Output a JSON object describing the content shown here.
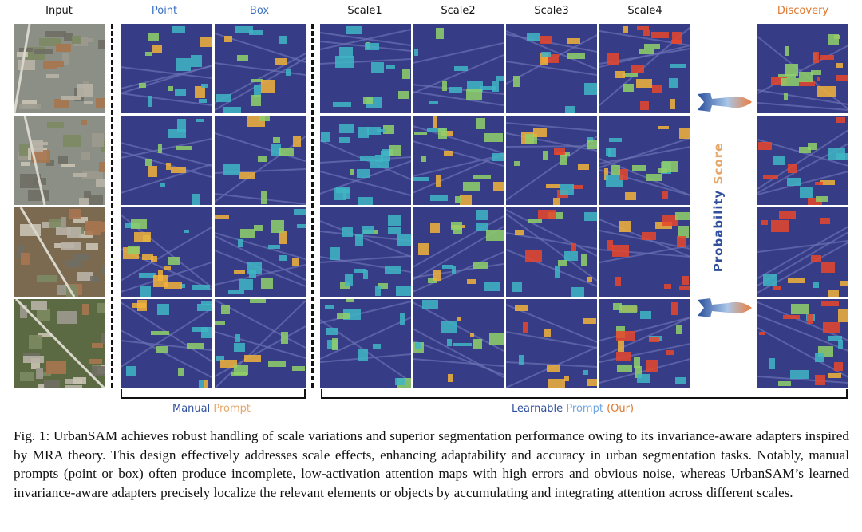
{
  "headers": {
    "input": "Input",
    "point": "Point",
    "box": "Box",
    "scale1": "Scale1",
    "scale2": "Scale2",
    "scale3": "Scale3",
    "scale4": "Scale4",
    "discovery": "Discovery"
  },
  "groups": {
    "manual_word1": "Manual",
    "manual_word2": "Prompt",
    "learnable_word1": "Learnable",
    "learnable_word2": "Prompt",
    "learnable_word3": "(Our)"
  },
  "side_label": {
    "word1": "Probability",
    "word2": "Score"
  },
  "caption": "Fig. 1: UrbanSAM achieves robust handling of scale variations and superior segmentation performance owing to its invariance-aware adapters inspired by MRA theory. This design effectively addresses scale effects, enhancing adaptability and accuracy in urban segmentation tasks. Notably, manual prompts (point or box) often produce incomplete, low-activation attention maps with high errors and obvious noise, whereas UrbanSAM’s learned invariance-aware adapters precisely localize the relevant elements or objects by accumulating and integrating attention across different scales.",
  "colors": {
    "heat_low": "#3a3f8f",
    "heat_mid": "#3fb6c4",
    "heat_high": "#e8452c",
    "accent_blue": "#3a6fc4",
    "accent_orange": "#e0782f"
  }
}
